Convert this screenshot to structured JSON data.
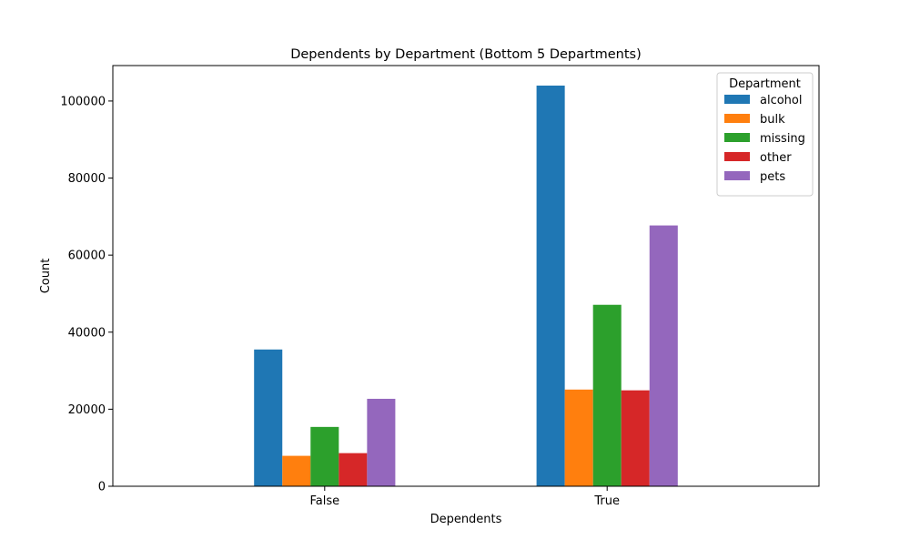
{
  "chart_data": {
    "type": "bar",
    "title": "Dependents by Department (Bottom 5 Departments)",
    "xlabel": "Dependents",
    "ylabel": "Count",
    "categories": [
      "False",
      "True"
    ],
    "ylim": [
      0,
      109200
    ],
    "yticks": [
      0,
      20000,
      40000,
      60000,
      80000,
      100000
    ],
    "grid": false,
    "legend": {
      "title": "Department",
      "placement": "top-right"
    },
    "series": [
      {
        "name": "alcohol",
        "color": "#1f77b4",
        "values": [
          35500,
          104000
        ]
      },
      {
        "name": "bulk",
        "color": "#ff7f0e",
        "values": [
          7900,
          25100
        ]
      },
      {
        "name": "missing",
        "color": "#2ca02c",
        "values": [
          15400,
          47100
        ]
      },
      {
        "name": "other",
        "color": "#d62728",
        "values": [
          8600,
          24900
        ]
      },
      {
        "name": "pets",
        "color": "#9467bd",
        "values": [
          22700,
          67700
        ]
      }
    ]
  }
}
